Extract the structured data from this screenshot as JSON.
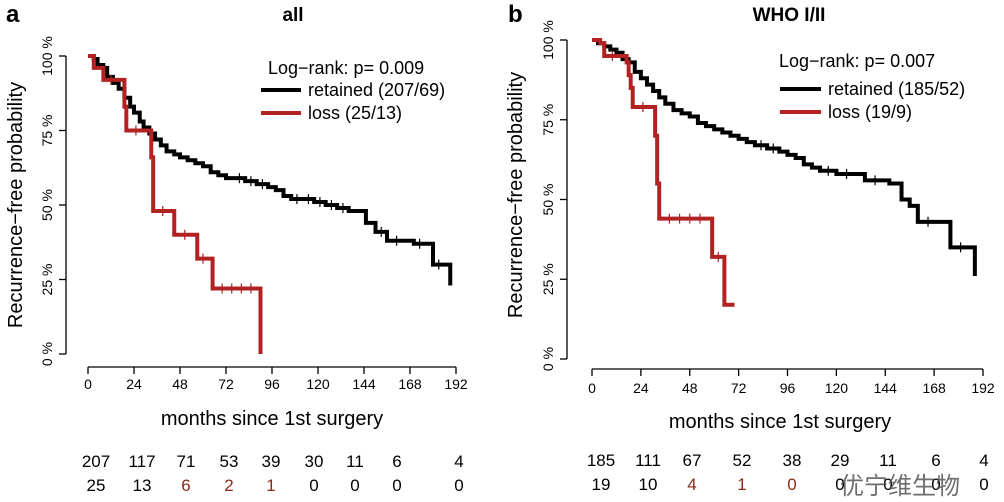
{
  "watermark": "优宁维生物",
  "colors": {
    "retained": "#000000",
    "loss": "#b22222",
    "axis": "#000000"
  },
  "chart_data": [
    {
      "type": "line",
      "step": true,
      "panel_letter": "a",
      "title": "all",
      "xlabel": "months since 1st surgery",
      "ylabel": "Recurrence−free probability",
      "xlim": [
        0,
        192
      ],
      "ylim": [
        0,
        100
      ],
      "xticks": [
        0,
        24,
        48,
        72,
        96,
        120,
        144,
        168,
        192
      ],
      "xtick_labels": [
        "0",
        "24",
        "48",
        "72",
        "96",
        "120",
        "144",
        "168",
        "192"
      ],
      "yticks": [
        0,
        25,
        50,
        75,
        100
      ],
      "ytick_labels": [
        "0 %",
        "25 %",
        "50 %",
        "75 %",
        "100 %"
      ],
      "logrank": "Log−rank: p= 0.009",
      "series": [
        {
          "key": "retained",
          "name": "retained (207/69)",
          "points": [
            [
              0,
              100
            ],
            [
              3,
              99
            ],
            [
              5,
              97
            ],
            [
              8,
              96
            ],
            [
              10,
              93
            ],
            [
              13,
              91
            ],
            [
              16,
              89
            ],
            [
              19,
              86
            ],
            [
              22,
              83
            ],
            [
              24,
              81
            ],
            [
              27,
              78
            ],
            [
              29,
              76
            ],
            [
              32,
              74
            ],
            [
              35,
              72
            ],
            [
              38,
              70
            ],
            [
              41,
              68
            ],
            [
              45,
              67
            ],
            [
              48,
              66
            ],
            [
              52,
              65
            ],
            [
              56,
              64
            ],
            [
              60,
              63
            ],
            [
              64,
              61
            ],
            [
              68,
              60
            ],
            [
              72,
              59
            ],
            [
              76,
              59
            ],
            [
              82,
              58
            ],
            [
              88,
              57
            ],
            [
              94,
              56
            ],
            [
              98,
              55
            ],
            [
              102,
              53
            ],
            [
              106,
              52
            ],
            [
              112,
              52
            ],
            [
              118,
              51
            ],
            [
              124,
              50
            ],
            [
              130,
              49
            ],
            [
              136,
              48
            ],
            [
              140,
              48
            ],
            [
              145,
              44
            ],
            [
              150,
              41
            ],
            [
              156,
              38
            ],
            [
              166,
              38
            ],
            [
              170,
              37
            ],
            [
              176,
              37
            ],
            [
              180,
              30
            ],
            [
              186,
              30
            ],
            [
              189,
              23
            ]
          ]
        },
        {
          "key": "loss",
          "name": "loss (25/13)",
          "points": [
            [
              0,
              100
            ],
            [
              3,
              96
            ],
            [
              8,
              92
            ],
            [
              16,
              92
            ],
            [
              19,
              83
            ],
            [
              20,
              75
            ],
            [
              30,
              75
            ],
            [
              33,
              66
            ],
            [
              34,
              48
            ],
            [
              44,
              48
            ],
            [
              45,
              40
            ],
            [
              56,
              40
            ],
            [
              57,
              32
            ],
            [
              63,
              32
            ],
            [
              65,
              22
            ],
            [
              90,
              22
            ],
            [
              90,
              0
            ]
          ]
        }
      ],
      "risk_table": {
        "retained": [
          "207",
          "117",
          "71",
          "53",
          "39",
          "30",
          "11",
          "6",
          "4"
        ],
        "loss": [
          "25",
          "13",
          "6",
          "2",
          "1",
          "0",
          "0",
          "0",
          "0"
        ]
      }
    },
    {
      "type": "line",
      "step": true,
      "panel_letter": "b",
      "title": "WHO I/II",
      "xlabel": "months since 1st surgery",
      "ylabel": "Recurrence−free probability",
      "xlim": [
        0,
        192
      ],
      "ylim": [
        0,
        100
      ],
      "xticks": [
        0,
        24,
        48,
        72,
        96,
        120,
        144,
        168,
        192
      ],
      "xtick_labels": [
        "0",
        "24",
        "48",
        "72",
        "96",
        "120",
        "144",
        "168",
        "192"
      ],
      "yticks": [
        0,
        25,
        50,
        75,
        100
      ],
      "ytick_labels": [
        "0 %",
        "25 %",
        "50 %",
        "75 %",
        "100 %"
      ],
      "logrank": "Log−rank: p= 0.007",
      "series": [
        {
          "key": "retained",
          "name": "retained (185/52)",
          "points": [
            [
              0,
              100
            ],
            [
              3,
              99
            ],
            [
              6,
              98
            ],
            [
              9,
              97
            ],
            [
              12,
              96
            ],
            [
              15,
              94
            ],
            [
              18,
              93
            ],
            [
              21,
              90
            ],
            [
              24,
              88
            ],
            [
              27,
              86
            ],
            [
              30,
              84
            ],
            [
              33,
              82
            ],
            [
              36,
              80
            ],
            [
              40,
              78
            ],
            [
              44,
              77
            ],
            [
              48,
              76
            ],
            [
              52,
              74
            ],
            [
              56,
              73
            ],
            [
              60,
              72
            ],
            [
              64,
              71
            ],
            [
              68,
              70
            ],
            [
              72,
              69
            ],
            [
              76,
              68
            ],
            [
              80,
              67
            ],
            [
              86,
              66
            ],
            [
              92,
              65
            ],
            [
              96,
              64
            ],
            [
              100,
              63
            ],
            [
              104,
              61
            ],
            [
              108,
              60
            ],
            [
              112,
              59
            ],
            [
              120,
              58
            ],
            [
              130,
              58
            ],
            [
              134,
              56
            ],
            [
              144,
              56
            ],
            [
              146,
              55
            ],
            [
              149,
              55
            ],
            [
              152,
              50
            ],
            [
              156,
              48
            ],
            [
              158,
              48
            ],
            [
              160,
              43
            ],
            [
              170,
              43
            ],
            [
              173,
              43
            ],
            [
              176,
              35
            ],
            [
              186,
              35
            ],
            [
              188,
              26
            ]
          ]
        },
        {
          "key": "loss",
          "name": "loss (19/9)",
          "points": [
            [
              0,
              100
            ],
            [
              4,
              99
            ],
            [
              6,
              95
            ],
            [
              14,
              95
            ],
            [
              17,
              93
            ],
            [
              18,
              89
            ],
            [
              19,
              85
            ],
            [
              20,
              79
            ],
            [
              30,
              79
            ],
            [
              31,
              70
            ],
            [
              32,
              55
            ],
            [
              33,
              44
            ],
            [
              58,
              44
            ],
            [
              59,
              32
            ],
            [
              65,
              32
            ],
            [
              65,
              17
            ],
            [
              70,
              17
            ]
          ]
        }
      ],
      "risk_table": {
        "retained": [
          "185",
          "111",
          "67",
          "52",
          "38",
          "29",
          "11",
          "6",
          "4"
        ],
        "loss": [
          "19",
          "10",
          "4",
          "1",
          "0",
          "0",
          "0",
          "0",
          "0"
        ]
      }
    }
  ]
}
